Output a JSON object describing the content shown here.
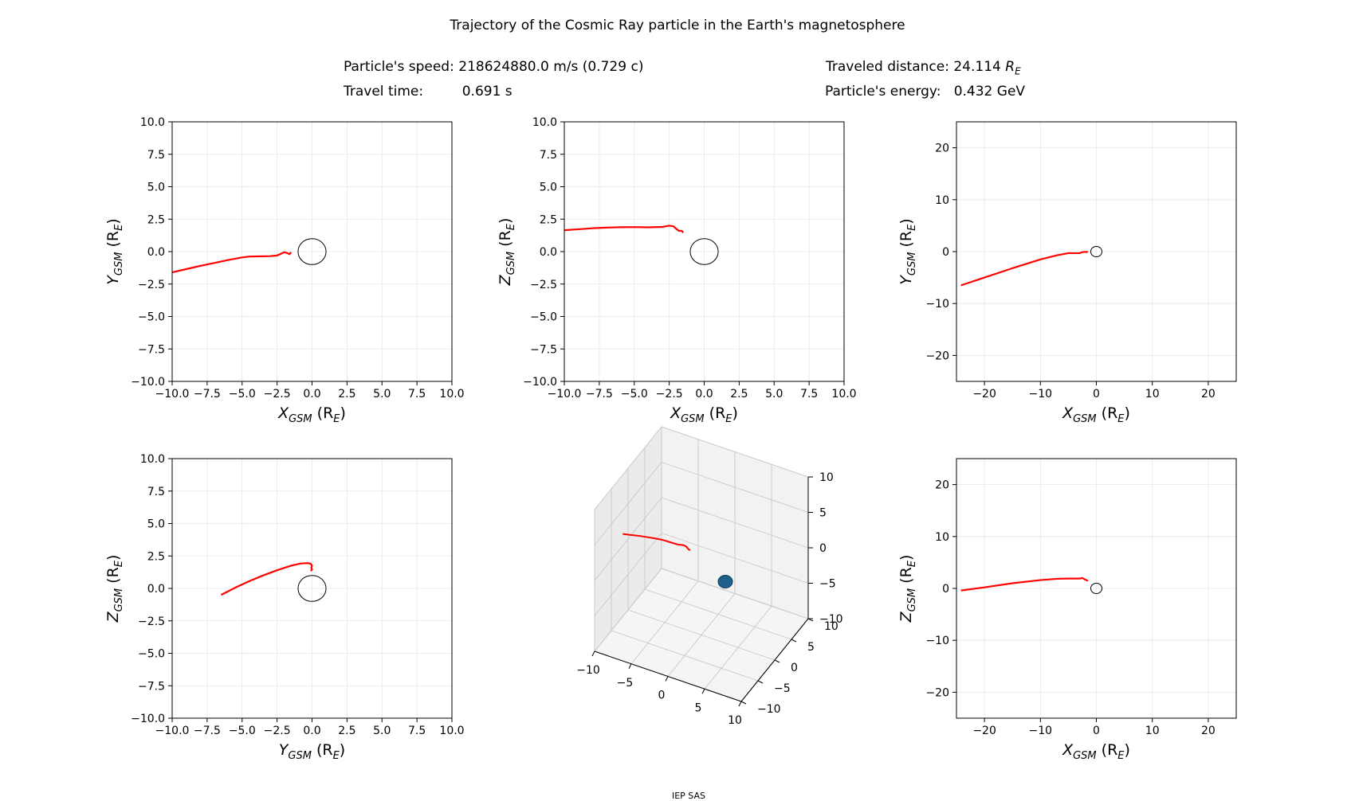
{
  "header": {
    "title": "Trajectory of the Cosmic Ray particle in the Earth's magnetosphere",
    "speed_label": "Particle's speed:",
    "speed_value": "218624880.0 m/s (0.729 c)",
    "time_label": "Travel time:",
    "time_value": "0.691 s",
    "distance_label": "Traveled distance:",
    "distance_value": "24.114",
    "distance_unit_base": "R",
    "distance_unit_sub": "E",
    "energy_label": "Particle's energy:",
    "energy_value": "0.432 GeV"
  },
  "footer": {
    "text": "IEP SAS"
  },
  "colors": {
    "trajectory": "#ff0000",
    "earth_outline": "#000000",
    "earth_fill_3d": "#1f5f8b",
    "grid": "#e6e6e6"
  },
  "chart_data": [
    {
      "type": "line",
      "xlabel_base": "X",
      "xlabel_sub": "GSM",
      "xlabel_unit": "(R",
      "xlabel_unit_sub": "E",
      "xlabel_close": ")",
      "ylabel_base": "Y",
      "ylabel_sub": "GSM",
      "ylabel_unit": "(R",
      "ylabel_unit_sub": "E",
      "ylabel_close": ")",
      "xlim": [
        -10,
        10
      ],
      "ylim": [
        -10,
        10
      ],
      "xticks": [
        -10,
        -7.5,
        -5,
        -2.5,
        0,
        2.5,
        5,
        7.5,
        10
      ],
      "yticks": [
        -10,
        -7.5,
        -5,
        -2.5,
        0,
        2.5,
        5,
        7.5,
        10
      ],
      "xtick_labels": [
        "−10.0",
        "−7.5",
        "−5.0",
        "−2.5",
        "0.0",
        "2.5",
        "5.0",
        "7.5",
        "10.0"
      ],
      "ytick_labels": [
        "−10.0",
        "−7.5",
        "−5.0",
        "−2.5",
        "0.0",
        "2.5",
        "5.0",
        "7.5",
        "10.0"
      ],
      "grid": true,
      "earth": {
        "cx": 0,
        "cy": 0,
        "r": 1
      },
      "series": [
        {
          "x": [
            -10,
            -9,
            -8,
            -7,
            -6,
            -5,
            -4.5,
            -3.5,
            -3,
            -2.5,
            -2.2,
            -2,
            -1.8,
            -1.6,
            -1.5
          ],
          "y": [
            -1.6,
            -1.35,
            -1.1,
            -0.88,
            -0.65,
            -0.45,
            -0.38,
            -0.36,
            -0.35,
            -0.3,
            -0.15,
            -0.05,
            -0.1,
            -0.2,
            -0.05
          ]
        }
      ]
    },
    {
      "type": "line",
      "xlabel_base": "X",
      "xlabel_sub": "GSM",
      "xlabel_unit": "(R",
      "xlabel_unit_sub": "E",
      "xlabel_close": ")",
      "ylabel_base": "Z",
      "ylabel_sub": "GSM",
      "ylabel_unit": "(R",
      "ylabel_unit_sub": "E",
      "ylabel_close": ")",
      "xlim": [
        -10,
        10
      ],
      "ylim": [
        -10,
        10
      ],
      "xticks": [
        -10,
        -7.5,
        -5,
        -2.5,
        0,
        2.5,
        5,
        7.5,
        10
      ],
      "yticks": [
        -10,
        -7.5,
        -5,
        -2.5,
        0,
        2.5,
        5,
        7.5,
        10
      ],
      "xtick_labels": [
        "−10.0",
        "−7.5",
        "−5.0",
        "−2.5",
        "0.0",
        "2.5",
        "5.0",
        "7.5",
        "10.0"
      ],
      "ytick_labels": [
        "−10.0",
        "−7.5",
        "−5.0",
        "−2.5",
        "0.0",
        "2.5",
        "5.0",
        "7.5",
        "10.0"
      ],
      "grid": true,
      "earth": {
        "cx": 0,
        "cy": 0,
        "r": 1
      },
      "series": [
        {
          "x": [
            -10,
            -9,
            -8,
            -7,
            -6,
            -5,
            -4,
            -3,
            -2.5,
            -2.2,
            -2,
            -1.8,
            -1.6,
            -1.5
          ],
          "y": [
            1.65,
            1.72,
            1.8,
            1.85,
            1.88,
            1.89,
            1.87,
            1.9,
            2.0,
            1.95,
            1.75,
            1.6,
            1.6,
            1.45
          ]
        }
      ]
    },
    {
      "type": "line",
      "xlabel_base": "X",
      "xlabel_sub": "GSM",
      "xlabel_unit": "(R",
      "xlabel_unit_sub": "E",
      "xlabel_close": ")",
      "ylabel_base": "Y",
      "ylabel_sub": "GSM",
      "ylabel_unit": "(R",
      "ylabel_unit_sub": "E",
      "ylabel_close": ")",
      "xlim": [
        -25,
        25
      ],
      "ylim": [
        -25,
        25
      ],
      "xticks": [
        -20,
        -10,
        0,
        10,
        20
      ],
      "yticks": [
        -20,
        -10,
        0,
        10,
        20
      ],
      "xtick_labels": [
        "−20",
        "−10",
        "0",
        "10",
        "20"
      ],
      "ytick_labels": [
        "−20",
        "−10",
        "0",
        "10",
        "20"
      ],
      "grid": true,
      "earth": {
        "cx": 0,
        "cy": 0,
        "r": 1
      },
      "series": [
        {
          "x": [
            -24.2,
            -20,
            -15,
            -10,
            -7,
            -5,
            -4,
            -3,
            -2.5,
            -2,
            -1.8,
            -1.5
          ],
          "y": [
            -6.5,
            -5,
            -3.2,
            -1.5,
            -0.7,
            -0.3,
            -0.3,
            -0.3,
            -0.1,
            -0.05,
            -0.1,
            0
          ]
        }
      ]
    },
    {
      "type": "line",
      "xlabel_base": "Y",
      "xlabel_sub": "GSM",
      "xlabel_unit": "(R",
      "xlabel_unit_sub": "E",
      "xlabel_close": ")",
      "ylabel_base": "Z",
      "ylabel_sub": "GSM",
      "ylabel_unit": "(R",
      "ylabel_unit_sub": "E",
      "ylabel_close": ")",
      "xlim": [
        -10,
        10
      ],
      "ylim": [
        -10,
        10
      ],
      "xticks": [
        -10,
        -7.5,
        -5,
        -2.5,
        0,
        2.5,
        5,
        7.5,
        10
      ],
      "yticks": [
        -10,
        -7.5,
        -5,
        -2.5,
        0,
        2.5,
        5,
        7.5,
        10
      ],
      "xtick_labels": [
        "−10.0",
        "−7.5",
        "−5.0",
        "−2.5",
        "0.0",
        "2.5",
        "5.0",
        "7.5",
        "10.0"
      ],
      "ytick_labels": [
        "−10.0",
        "−7.5",
        "−5.0",
        "−2.5",
        "0.0",
        "2.5",
        "5.0",
        "7.5",
        "10.0"
      ],
      "grid": true,
      "earth": {
        "cx": 0,
        "cy": 0,
        "r": 1
      },
      "series": [
        {
          "x": [
            -6.5,
            -5.5,
            -4.5,
            -3.5,
            -2.5,
            -1.5,
            -0.8,
            -0.3,
            -0.1,
            0,
            -0.05,
            0,
            -0.1
          ],
          "y": [
            -0.5,
            0.05,
            0.55,
            1.0,
            1.4,
            1.75,
            1.92,
            1.95,
            1.9,
            1.75,
            1.6,
            1.45,
            1.35
          ]
        }
      ]
    },
    {
      "type": "line",
      "projection": "3d",
      "xlim": [
        -10,
        10
      ],
      "ylim": [
        -10,
        10
      ],
      "zlim": [
        -10,
        10
      ],
      "xtick_labels": [
        "−10",
        "−5",
        "0",
        "5",
        "10"
      ],
      "ytick_labels": [
        "−10",
        "−5",
        "0",
        "5",
        "10"
      ],
      "ztick_labels": [
        "−10",
        "−5",
        "0",
        "5",
        "10"
      ],
      "grid": true,
      "series": [
        {
          "x": [
            -10,
            -9,
            -8,
            -7,
            -6,
            -5,
            -4,
            -3,
            -2.5,
            -2.2,
            -2,
            -1.8,
            -1.6,
            -1.5
          ],
          "y": [
            -1.6,
            -1.35,
            -1.1,
            -0.88,
            -0.65,
            -0.45,
            -0.38,
            -0.36,
            -0.3,
            -0.2,
            -0.05,
            -0.1,
            -0.2,
            -0.05
          ],
          "z": [
            1.65,
            1.72,
            1.8,
            1.85,
            1.88,
            1.89,
            1.87,
            1.9,
            2.0,
            1.95,
            1.75,
            1.6,
            1.6,
            1.45
          ]
        }
      ]
    },
    {
      "type": "line",
      "xlabel_base": "X",
      "xlabel_sub": "GSM",
      "xlabel_unit": "(R",
      "xlabel_unit_sub": "E",
      "xlabel_close": ")",
      "ylabel_base": "Z",
      "ylabel_sub": "GSM",
      "ylabel_unit": "(R",
      "ylabel_unit_sub": "E",
      "ylabel_close": ")",
      "xlim": [
        -25,
        25
      ],
      "ylim": [
        -25,
        25
      ],
      "xticks": [
        -20,
        -10,
        0,
        10,
        20
      ],
      "yticks": [
        -20,
        -10,
        0,
        10,
        20
      ],
      "xtick_labels": [
        "−20",
        "−10",
        "0",
        "10",
        "20"
      ],
      "ytick_labels": [
        "−20",
        "−10",
        "0",
        "10",
        "20"
      ],
      "grid": true,
      "earth": {
        "cx": 0,
        "cy": 0,
        "r": 1
      },
      "series": [
        {
          "x": [
            -24.2,
            -20,
            -15,
            -10,
            -7,
            -5,
            -3,
            -2.5,
            -2,
            -1.8,
            -1.5
          ],
          "y": [
            -0.4,
            0.2,
            1.0,
            1.6,
            1.85,
            1.9,
            1.9,
            2.0,
            1.7,
            1.6,
            1.45
          ]
        }
      ]
    }
  ]
}
